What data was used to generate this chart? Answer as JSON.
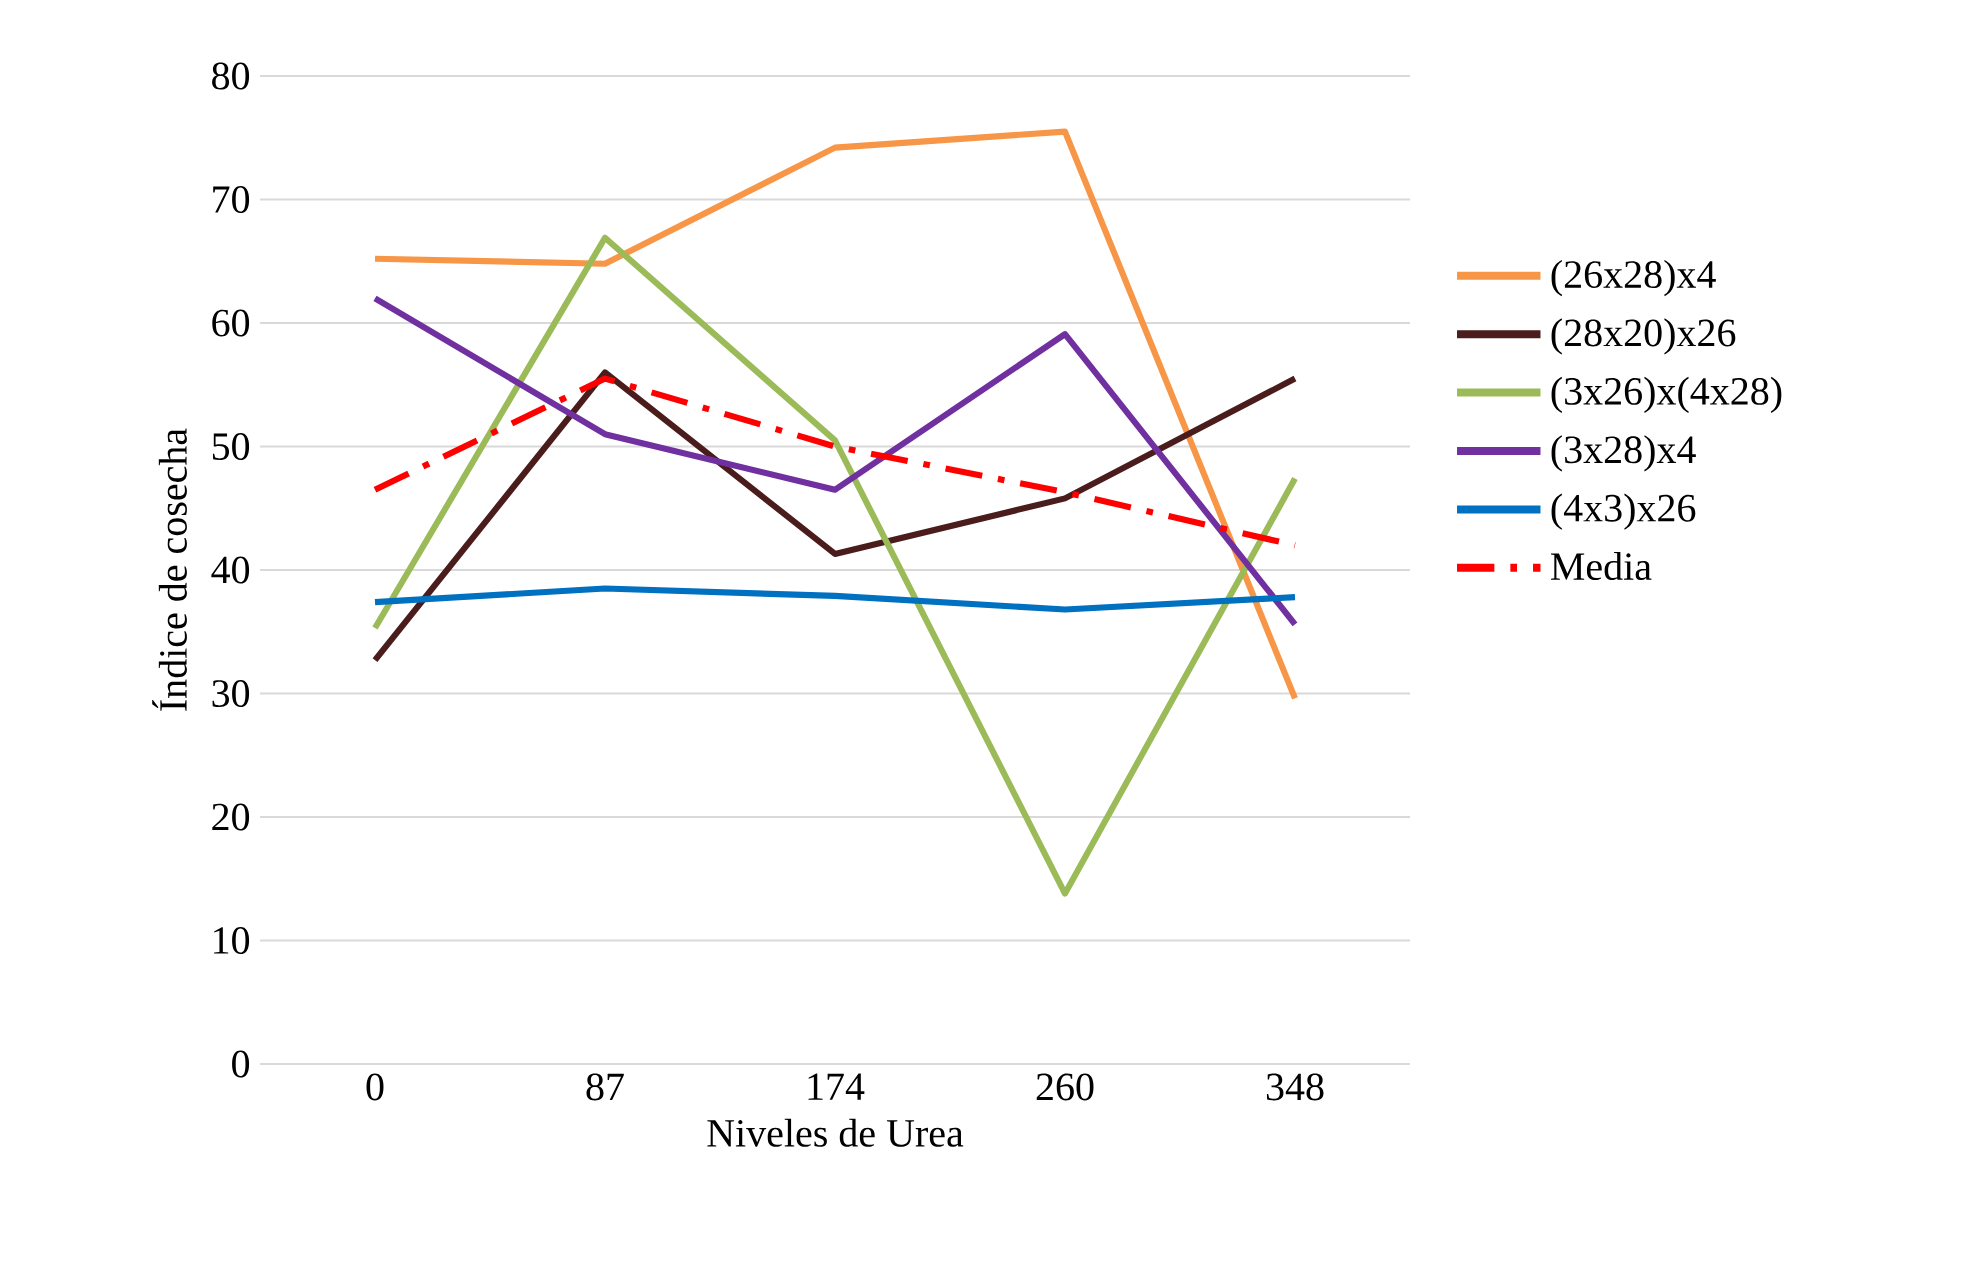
{
  "chart_data": {
    "type": "line",
    "xlabel": "Niveles de Urea",
    "ylabel": "Índice de cosecha",
    "categories": [
      "0",
      "87",
      "174",
      "260",
      "348"
    ],
    "ylim": [
      0,
      80
    ],
    "yticks": [
      0,
      10,
      20,
      30,
      40,
      50,
      60,
      70,
      80
    ],
    "grid": "y",
    "legend": "right",
    "marker": "none",
    "series": [
      {
        "name": "(26x28)x4",
        "color": "#f79646",
        "values": [
          65.2,
          64.8,
          74.2,
          75.5,
          29.6
        ]
      },
      {
        "name": "(28x20)x26",
        "color": "#4a1c1c",
        "values": [
          32.7,
          56.0,
          41.3,
          45.8,
          55.5
        ]
      },
      {
        "name": "(3x26)x(4x28)",
        "color": "#9bbb59",
        "values": [
          35.3,
          66.9,
          50.5,
          13.8,
          47.4
        ]
      },
      {
        "name": "(3x28)x4",
        "color": "#7030a0",
        "values": [
          62.0,
          51.0,
          46.5,
          59.1,
          35.6
        ]
      },
      {
        "name": "(4x3)x26",
        "color": "#0070c0",
        "values": [
          37.4,
          38.5,
          37.9,
          36.8,
          37.8
        ]
      },
      {
        "name": "Media",
        "color": "#ff0000",
        "line_style": "dashdot",
        "values": [
          46.5,
          55.5,
          50.0,
          46.3,
          42.0
        ]
      }
    ]
  }
}
